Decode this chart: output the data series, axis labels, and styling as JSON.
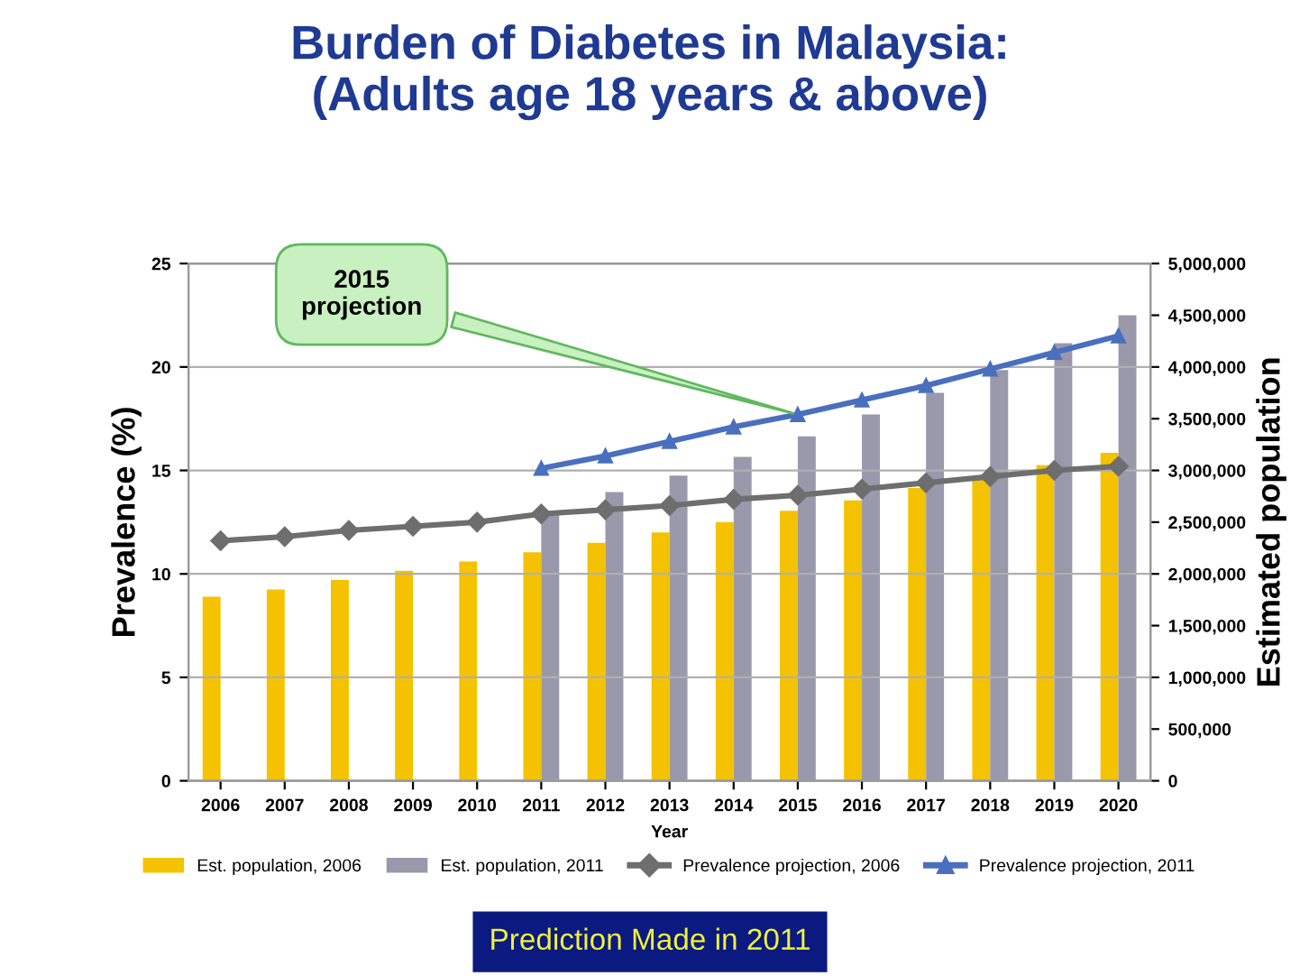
{
  "chart_data": {
    "type": "bar",
    "title": "Burden of Diabetes in Malaysia:\n(Adults age 18 years & above)",
    "xlabel": "Year",
    "ylabel": "Prevalence (%)",
    "y2label": "Estimated population",
    "categories": [
      "2006",
      "2007",
      "2008",
      "2009",
      "2010",
      "2011",
      "2012",
      "2013",
      "2014",
      "2015",
      "2016",
      "2017",
      "2018",
      "2019",
      "2020"
    ],
    "series": [
      {
        "name": "Est. population, 2006",
        "axis": "y2",
        "color": "#f5c200",
        "values": [
          1780000,
          1850000,
          1940000,
          2030000,
          2120000,
          2210000,
          2300000,
          2400000,
          2500000,
          2610000,
          2710000,
          2830000,
          2920000,
          3050000,
          3170000
        ]
      },
      {
        "name": "Est. population, 2011",
        "axis": "y2",
        "color": "#9a98ab",
        "values": [
          null,
          null,
          null,
          null,
          null,
          2590000,
          2790000,
          2950000,
          3130000,
          3330000,
          3540000,
          3750000,
          3970000,
          4230000,
          4500000
        ]
      },
      {
        "name": "Prevalence projection, 2006",
        "type": "line",
        "color": "#6e6e6e",
        "marker": "diamond",
        "values": [
          11.6,
          11.8,
          12.1,
          12.3,
          12.5,
          12.9,
          13.1,
          13.3,
          13.6,
          13.8,
          14.1,
          14.4,
          14.7,
          15.0,
          15.2
        ]
      },
      {
        "name": "Prevalence projection, 2011",
        "type": "line",
        "color": "#4a6fbf",
        "marker": "triangle",
        "values": [
          null,
          null,
          null,
          null,
          null,
          15.1,
          15.7,
          16.4,
          17.1,
          17.7,
          18.4,
          19.1,
          19.9,
          20.7,
          21.5
        ]
      }
    ],
    "ylim": [
      0,
      25
    ],
    "yticks": [
      0,
      5,
      10,
      15,
      20,
      25
    ],
    "y2lim": [
      0,
      5000000
    ],
    "y2ticks": [
      {
        "value": 0,
        "label": "0"
      },
      {
        "value": 500000,
        "label": "500,000"
      },
      {
        "value": 1000000,
        "label": "1,000,000"
      },
      {
        "value": 1500000,
        "label": "1,500,000"
      },
      {
        "value": 2000000,
        "label": "2,000,000"
      },
      {
        "value": 2500000,
        "label": "2,500,000"
      },
      {
        "value": 3000000,
        "label": "3,000,000"
      },
      {
        "value": 3500000,
        "label": "3,500,000"
      },
      {
        "value": 4000000,
        "label": "4,000,000"
      },
      {
        "value": 4500000,
        "label": "4,500,000"
      },
      {
        "value": 5000000,
        "label": "5,000,000"
      }
    ],
    "grid": "y",
    "legend": "bottom",
    "annotations": [
      {
        "text": "2015\nprojection",
        "x": "2015",
        "y": 17.7
      },
      "Prediction Made in 2011"
    ]
  }
}
